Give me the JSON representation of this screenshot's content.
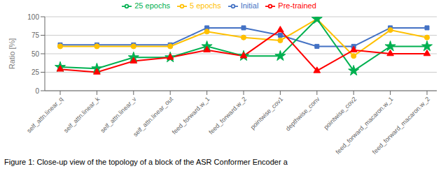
{
  "chart_data": {
    "type": "line",
    "categories": [
      "self_attn.linear_q",
      "self_attn.linear_k",
      "self_attn.linear_v",
      "self_attn.linear_out",
      "feed_forward.w_1",
      "feed_forward.w_2",
      "pointwise_cov1",
      "depthwise_conv",
      "pointwise_cov2",
      "feed_forward_macaron.w_1",
      "feed_forward_macaron.w_2"
    ],
    "series": [
      {
        "name": "Initial",
        "color": "#4472C4",
        "marker": "square",
        "values": [
          62,
          62,
          62,
          62,
          85,
          85,
          75,
          60,
          60,
          85,
          85
        ]
      },
      {
        "name": "5 epochs",
        "color": "#FFC000",
        "marker": "circle",
        "values": [
          60,
          60,
          60,
          60,
          80,
          72,
          68,
          97,
          47,
          82,
          72
        ]
      },
      {
        "name": "25 epochs",
        "color": "#00B050",
        "marker": "star",
        "values": [
          32,
          30,
          45,
          45,
          60,
          47,
          47,
          97,
          27,
          60,
          60
        ]
      },
      {
        "name": "Pre-trained",
        "color": "#FF0000",
        "marker": "triangle",
        "values": [
          29,
          25,
          40,
          45,
          55,
          47,
          82,
          27,
          55,
          50,
          50
        ]
      }
    ],
    "ylabel": "Ratio [%]",
    "ylim": [
      0,
      100
    ],
    "yticks": [
      0,
      25,
      50,
      75,
      100
    ],
    "grid": true,
    "legend": "top",
    "caption": "Figure 1: Close-up view of the topology of a block of the ASR Conformer Encoder a"
  }
}
